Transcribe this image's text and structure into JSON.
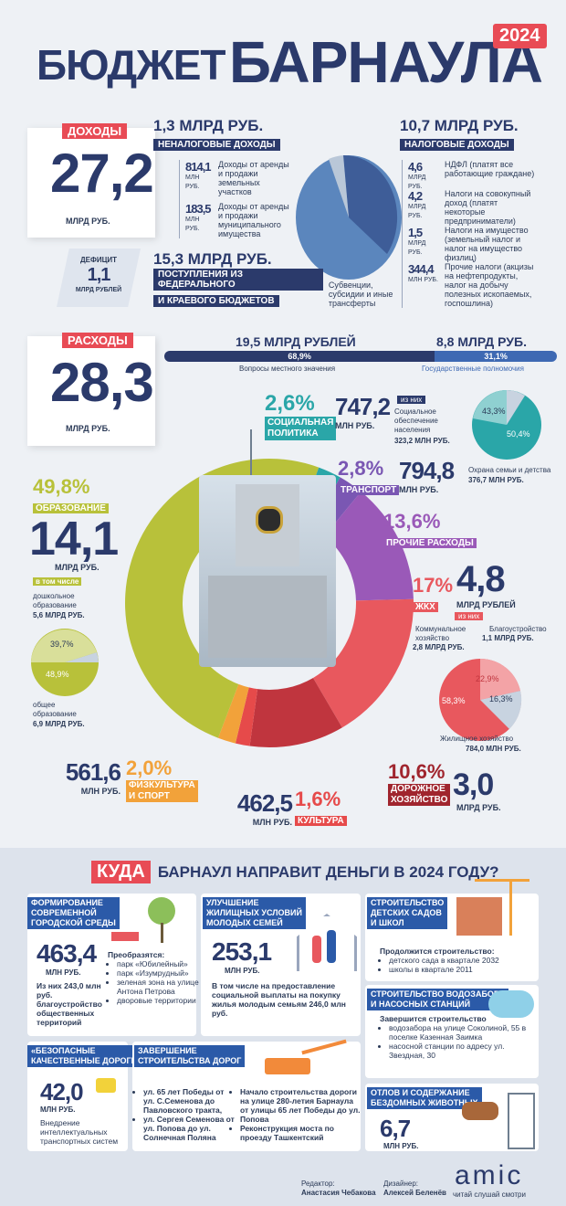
{
  "title": {
    "word1": "БЮДЖЕТ",
    "word2": "БАРНАУЛА",
    "year": "2024"
  },
  "income": {
    "label": "ДОХОДЫ",
    "value": "27,2",
    "unit": "МЛРД РУБ.",
    "nontax": {
      "amount": "1,3 МЛРД РУБ.",
      "title": "НЕНАЛОГОВЫЕ ДОХОДЫ",
      "items": [
        {
          "value": "814,1",
          "unit": "МЛН РУБ.",
          "text": "Доходы от аренды и продажи земельных участков"
        },
        {
          "value": "183,5",
          "unit": "МЛН РУБ.",
          "text": "Доходы от аренды и продажи муниципального имущества"
        }
      ]
    },
    "tax": {
      "amount": "10,7 МЛРД РУБ.",
      "title": "НАЛОГОВЫЕ ДОХОДЫ",
      "items": [
        {
          "value": "4,6",
          "unit": "МЛРД РУБ.",
          "text": "НДФЛ (платят все работающие граждане)"
        },
        {
          "value": "4,2",
          "unit": "МЛРД РУБ.",
          "text": "Налоги на совокупный доход (платят некоторые предприниматели)"
        },
        {
          "value": "1,5",
          "unit": "МЛРД РУБ.",
          "text": "Налоги на имущество (земельный налог и налог на имущество физлиц)"
        },
        {
          "value": "344,4",
          "unit": "МЛН РУБ.",
          "text": "Прочие налоги (акцизы на нефтепродукты, налог на добычу полезных ископаемых, госпошлина)"
        }
      ]
    },
    "transfers": {
      "amount": "15,3 МЛРД РУБ.",
      "title1": "ПОСТУПЛЕНИЯ ИЗ ФЕДЕРАЛЬНОГО",
      "title2": "И КРАЕВОГО БЮДЖЕТОВ",
      "text": "Субвенции, субсидии и иные трансферты"
    }
  },
  "deficit": {
    "label": "ДЕФИЦИТ",
    "value": "1,1",
    "unit": "МЛРД РУБЛЕЙ"
  },
  "expenses": {
    "label": "РАСХОДЫ",
    "value": "28,3",
    "unit": "МЛРД РУБ.",
    "split": {
      "local": {
        "amount": "19,5 МЛРД РУБЛЕЙ",
        "pct": "68,9%",
        "label": "Вопросы местного значения",
        "fraction": 0.689
      },
      "state": {
        "amount": "8,8 МЛРД РУБ.",
        "pct": "31,1%",
        "label": "Государственные полномочия",
        "fraction": 0.311
      }
    }
  },
  "categories": {
    "social": {
      "pct": "2,6%",
      "title1": "СОЦИАЛЬНАЯ",
      "title2": "ПОЛИТИКА",
      "value": "747,2",
      "unit": "МЛН РУБ.",
      "of_which": "из них",
      "sub1": "Социальное обеспечение населения",
      "sub1_value": "323,2 МЛН РУБ.",
      "pie1": "43,3%",
      "pie2": "50,4%",
      "sub2": "Охрана семьи и детства",
      "sub2_value": "376,7 МЛН РУБ."
    },
    "transport": {
      "pct": "2,8%",
      "title": "ТРАНСПОРТ",
      "value": "794,8",
      "unit": "МЛН РУБ."
    },
    "other": {
      "pct": "13,6%",
      "title": "ПРОЧИЕ РАСХОДЫ"
    },
    "education": {
      "pct": "49,8%",
      "title": "ОБРАЗОВАНИЕ",
      "value": "14,1",
      "unit": "МЛРД РУБ.",
      "including": "в том числе",
      "sub1": "дошкольное образование",
      "sub1_value": "5,6 МЛРД РУБ.",
      "pie1": "39,7%",
      "pie2": "48,9%",
      "sub2": "общее образование",
      "sub2_value": "6,9 МЛРД РУБ."
    },
    "housing": {
      "pct": "17%",
      "title": "ЖКХ",
      "value": "4,8",
      "unit": "МЛРД РУБЛЕЙ",
      "of_which": "из них",
      "sub1": "Коммунальное хозяйство",
      "sub1_value": "2,8 МЛРД РУБ.",
      "sub2": "Благоустройство",
      "sub2_value": "1,1 МЛРД РУБ.",
      "pie1": "22,9%",
      "pie2": "58,3%",
      "pie3": "16,3%",
      "sub3": "Жилищное хозяйство",
      "sub3_value": "784,0 МЛН РУБ."
    },
    "sport": {
      "pct": "2,0%",
      "title1": "ФИЗКУЛЬТУРА",
      "title2": "И СПОРТ",
      "value": "561,6",
      "unit": "МЛН РУБ."
    },
    "culture": {
      "pct": "1,6%",
      "title": "КУЛЬТУРА",
      "value": "462,5",
      "unit": "МЛН РУБ."
    },
    "roads": {
      "pct": "10,6%",
      "title1": "ДОРОЖНОЕ",
      "title2": "ХОЗЯЙСТВО",
      "value": "3,0",
      "unit": "МЛРД РУБ."
    }
  },
  "chart_data": [
    {
      "type": "pie",
      "title": "",
      "labels": [
        "Ненаналоговые доходы",
        "Налоговые доходы",
        "Поступления из федерального и краевого бюджетов"
      ],
      "values": [
        1.3,
        10.7,
        15.3
      ]
    },
    {
      "type": "pie",
      "title": "",
      "labels": [
        "СОЦИАЛЬНАЯ ПОЛИТИКА",
        "ТРАНСПОРТ",
        "ПРОЧИЕ РАСХОДЫ",
        "ЖКХ",
        "ДОРОЖНОЕ ХОЗЯЙСТВО",
        "КУЛЬТУРА",
        "ФИЗКУЛЬТУРА И СПОРТ",
        "ОБРАЗОВАНИЕ"
      ],
      "values": [
        2.6,
        2.8,
        13.6,
        17,
        10.6,
        1.6,
        2.0,
        49.8
      ],
      "colors": [
        "#2aa6a8",
        "#7a57b3",
        "#9a59b8",
        "#e8585e",
        "#c0353e",
        "#e64a4a",
        "#f2a23a",
        "#b8c13a"
      ]
    },
    {
      "type": "pie",
      "title": "",
      "labels": [
        "43,3%",
        "50,4%"
      ],
      "values": [
        43.3,
        50.4
      ]
    },
    {
      "type": "pie",
      "title": "",
      "labels": [
        "39,7%",
        "48,9%"
      ],
      "values": [
        39.7,
        48.9
      ]
    },
    {
      "type": "pie",
      "title": "",
      "labels": [
        "22,9%",
        "58,3%",
        "16,3%"
      ],
      "values": [
        22.9,
        58.3,
        16.3
      ]
    }
  ],
  "where": {
    "kuda": "КУДА",
    "heading": "БАРНАУЛ НАПРАВИТ ДЕНЬГИ В 2024 ГОДУ?",
    "urban": {
      "title1": "ФОРМИРОВАНИЕ",
      "title2": "СОВРЕМЕННОЙ",
      "title3": "ГОРОДСКОЙ СРЕДЫ",
      "value": "463,4",
      "unit": "МЛН РУБ.",
      "note": "Из них 243,0 млн руб. благоустройство общественных территорий",
      "transform": "Преобразятся:",
      "items": [
        "парк «Юбилейный»",
        "парк «Изумрудный»",
        "зеленая зона на улице Антона Петрова",
        "дворовые территории"
      ]
    },
    "housing": {
      "title1": "УЛУЧШЕНИЕ",
      "title2": "ЖИЛИЩНЫХ УСЛОВИЙ",
      "title3": "МОЛОДЫХ СЕМЕЙ",
      "value": "253,1",
      "unit": "МЛН РУБ.",
      "note": "В том числе на предоставление социальной выплаты на покупку жилья молодым семьям 246,0 млн руб."
    },
    "kindergarten": {
      "title1": "СТРОИТЕЛЬСТВО",
      "title2": "ДЕТСКИХ САДОВ",
      "title3": "И ШКОЛ",
      "lead": "Продолжится строительство:",
      "items": [
        "детского сада в квартале 2032",
        "школы в квартале 2011"
      ]
    },
    "water": {
      "title1": "СТРОИТЕЛЬСТВО ВОДОЗАБОРА",
      "title2": "И НАСОСНЫХ СТАНЦИЙ",
      "lead": "Завершится строительство",
      "items": [
        "водозабора на улице Соколиной, 55 в поселке Казенная Заимка",
        "насосной станции по адресу ул. Звездная, 30"
      ]
    },
    "safe_roads": {
      "title1": "«БЕЗОПАСНЫЕ",
      "title2": "КАЧЕСТВЕННЫЕ ДОРОГИ»",
      "value": "42,0",
      "unit": "МЛН РУБ.",
      "note": "Внедрение интеллектуальных транспортных систем"
    },
    "road_build": {
      "title1": "ЗАВЕРШЕНИЕ",
      "title2": "СТРОИТЕЛЬСТВА ДОРОГ",
      "items": [
        "ул. 65 лет Победы от ул. С.Семенова до Павловского тракта,",
        "ул. Сергея Семенова от ул. Попова до ул. Солнечная Поляна"
      ],
      "items2": [
        "Начало строительства дороги на улице 280-летия Барнаула от улицы 65 лет Победы до ул. Попова",
        "Реконструкция моста по проезду Ташкентский"
      ]
    },
    "animals": {
      "title1": "ОТЛОВ И СОДЕРЖАНИЕ",
      "title2": "БЕЗДОМНЫХ ЖИВОТНЫХ",
      "value": "6,7",
      "unit": "МЛН РУБ."
    }
  },
  "footer": {
    "editor_label": "Редактор:",
    "editor": "Анастасия Чебакова",
    "designer_label": "Дизайнер:",
    "designer": "Алексей Беленёв",
    "logo": "amic",
    "slogan": "читай слушай смотри"
  }
}
